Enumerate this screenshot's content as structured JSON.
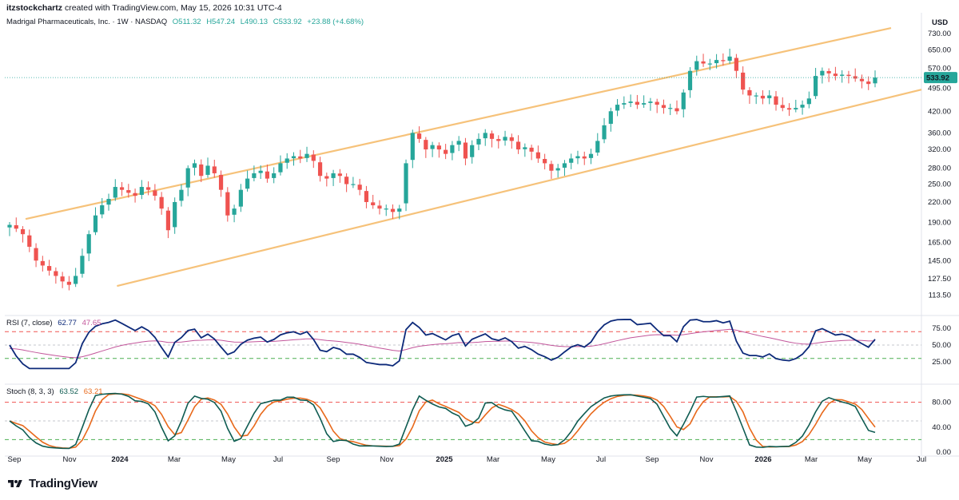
{
  "header": {
    "author": "itzstockchartz",
    "created_text": "created with TradingView.com, May 15, 2026 10:31 UTC-4"
  },
  "price_legend": {
    "symbol": "Madrigal Pharmaceuticals, Inc. · 1W · NASDAQ",
    "open": "O511.32",
    "high": "H547.24",
    "low": "L490.13",
    "close": "C533.92",
    "change": "+23.88 (+4.68%)"
  },
  "rsi_legend": {
    "label": "RSI (7, close)",
    "value1": "62.77",
    "value2": "47.65"
  },
  "stoch_legend": {
    "label": "Stoch (8, 3, 3)",
    "value1": "63.52",
    "value2": "63.21"
  },
  "currency": "USD",
  "last_price": "533.92",
  "footer": {
    "brand": "TradingView"
  },
  "colors": {
    "up": "#26a69a",
    "down": "#ef5350",
    "channel": "#f6c27a",
    "rsi": "#0d2a7a",
    "rsi_ma": "#c2559a",
    "stoch_k": "#0f5c52",
    "stoch_d": "#e8691b",
    "dash_red": "#ef5350",
    "dash_green": "#4caf50"
  },
  "chart_data": [
    {
      "type": "candlestick",
      "title": "Madrigal Pharmaceuticals, Inc. · 1W · NASDAQ",
      "y_scale": "log",
      "y_ticks": [
        "730.00",
        "650.00",
        "570.00",
        "495.00",
        "420.00",
        "360.00",
        "320.00",
        "280.00",
        "250.00",
        "220.00",
        "190.00",
        "165.00",
        "145.00",
        "127.50",
        "113.50"
      ],
      "x_ticks": [
        "Sep",
        "Nov",
        "2024",
        "Mar",
        "May",
        "Jul",
        "Sep",
        "Nov",
        "2025",
        "Mar",
        "May",
        "Jul",
        "Sep",
        "Nov",
        "2026",
        "Mar",
        "May",
        "Jul"
      ],
      "channel_upper": [
        [
          0,
          195
        ],
        [
          157,
          760
        ]
      ],
      "channel_lower": [
        [
          9,
          121
        ],
        [
          157,
          490
        ]
      ],
      "close_path": [
        187,
        182,
        175,
        160,
        145,
        140,
        135,
        130,
        125,
        122,
        130,
        150,
        175,
        200,
        215,
        225,
        245,
        240,
        235,
        230,
        245,
        240,
        230,
        210,
        180,
        220,
        240,
        280,
        290,
        265,
        285,
        270,
        240,
        200,
        210,
        240,
        260,
        270,
        275,
        260,
        270,
        290,
        300,
        305,
        300,
        310,
        295,
        265,
        260,
        270,
        265,
        250,
        250,
        240,
        220,
        215,
        210,
        210,
        205,
        210,
        290,
        360,
        345,
        320,
        330,
        320,
        310,
        330,
        340,
        300,
        330,
        345,
        360,
        345,
        340,
        350,
        340,
        320,
        325,
        315,
        300,
        290,
        275,
        280,
        290,
        300,
        305,
        300,
        310,
        340,
        380,
        420,
        440,
        445,
        450,
        440,
        445,
        450,
        440,
        430,
        430,
        420,
        480,
        560,
        600,
        590,
        590,
        605,
        600,
        620,
        560,
        490,
        470,
        470,
        460,
        470,
        440,
        430,
        425,
        430,
        440,
        460,
        540,
        560,
        550,
        540,
        545,
        540,
        530,
        520,
        510,
        533.92
      ]
    },
    {
      "type": "line",
      "title": "RSI (7, close)",
      "y_ticks": [
        "75.00",
        "50.00",
        "25.00"
      ],
      "levels": {
        "overbought": 70,
        "mid": 50,
        "oversold": 30
      }
    },
    {
      "type": "line",
      "title": "Stoch (8, 3, 3)",
      "y_ticks": [
        "80.00",
        "40.00",
        "0.00"
      ],
      "levels": {
        "overbought": 80,
        "mid": 50,
        "oversold": 20
      }
    }
  ]
}
